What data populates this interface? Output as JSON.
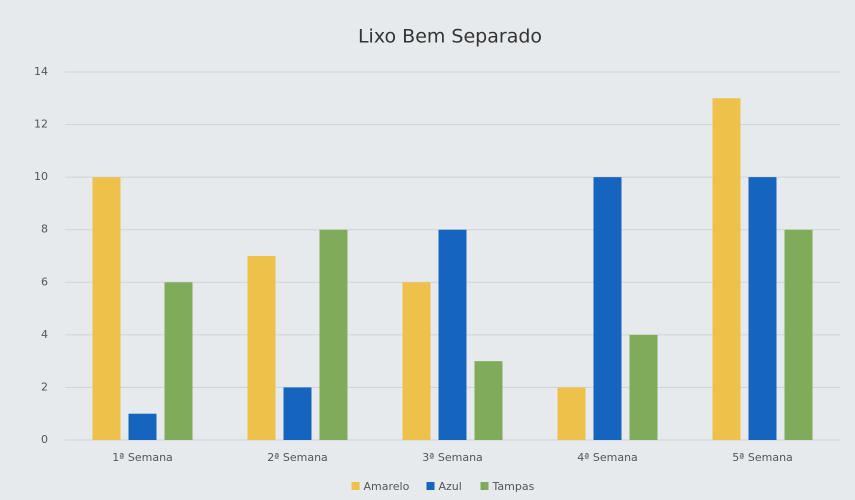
{
  "chart_data": {
    "type": "bar",
    "title": "Lixo Bem Separado",
    "categories": [
      "1ª Semana",
      "2ª Semana",
      "3ª Semana",
      "4ª Semana",
      "5ª Semana"
    ],
    "series": [
      {
        "name": "Amarelo",
        "color": "#eec14a",
        "values": [
          10,
          7,
          6,
          2,
          13
        ]
      },
      {
        "name": "Azul",
        "color": "#1565bf",
        "values": [
          1,
          2,
          8,
          10,
          10
        ]
      },
      {
        "name": "Tampas",
        "color": "#80ab5b",
        "values": [
          6,
          8,
          3,
          4,
          8
        ]
      }
    ],
    "ylim": [
      0,
      14
    ],
    "yticks": [
      0,
      2,
      4,
      6,
      8,
      10,
      12,
      14
    ],
    "grid": true,
    "legend": "bottom"
  }
}
